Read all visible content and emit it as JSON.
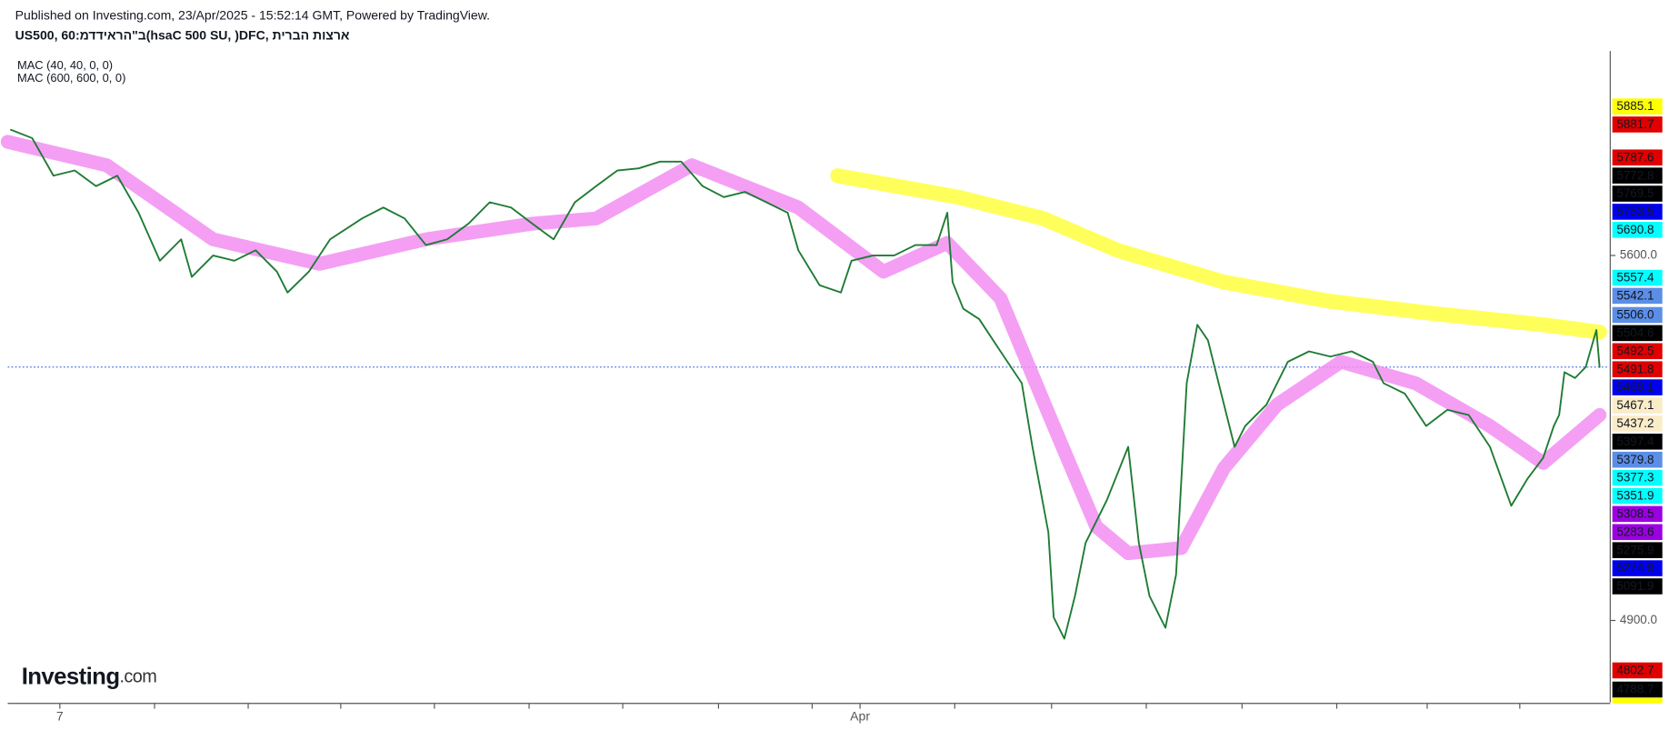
{
  "chart_data": {
    "type": "line",
    "published": "Published on Investing.com, 23/Apr/2025 - 15:52:14 GMT, Powered by TradingView.",
    "title": "US500, 60:מדדיארה\"ב(hsaC 500 SU, )DFC, תירבה תוצרא",
    "indicators": [
      "MAC (40, 40, 0, 0)",
      "MAC (600, 600, 0, 0)"
    ],
    "logo": {
      "brand": "Investing",
      "suffix": ".com"
    },
    "xlim": [
      0,
      1505
    ],
    "xticks": [
      {
        "value": 49,
        "label": "7"
      },
      {
        "value": 801,
        "label": "Apr"
      }
    ],
    "x_minor_ticks": [
      138,
      226,
      313,
      401,
      490,
      578,
      668,
      756,
      890,
      981,
      1070,
      1160,
      1249,
      1334,
      1421
    ],
    "ylim": [
      4743,
      5992
    ],
    "yticks": [
      {
        "value": 5600,
        "label": "5600.0"
      },
      {
        "value": 4900,
        "label": "4900.0"
      }
    ],
    "price_line": 5386,
    "series": [
      {
        "name": "US500",
        "color": "#1e7b34",
        "width": 1.6,
        "x": [
          3,
          23,
          43,
          63,
          83,
          103,
          123,
          143,
          163,
          173,
          193,
          213,
          233,
          253,
          263,
          283,
          303,
          333,
          353,
          373,
          393,
          413,
          433,
          453,
          473,
          493,
          513,
          533,
          553,
          573,
          593,
          613,
          633,
          653,
          673,
          693,
          713,
          733,
          743,
          763,
          783,
          793,
          813,
          833,
          853,
          873,
          883,
          888,
          898,
          913,
          933,
          953,
          963,
          978,
          983,
          993,
          1003,
          1013,
          1033,
          1053,
          1063,
          1073,
          1088,
          1098,
          1108,
          1118,
          1128,
          1138,
          1153,
          1163,
          1183,
          1203,
          1223,
          1243,
          1263,
          1283,
          1293,
          1313,
          1333,
          1353,
          1373,
          1393,
          1413,
          1428,
          1443,
          1453,
          1458,
          1463,
          1473,
          1483,
          1493,
          1496
        ],
        "values": [
          5841,
          5825,
          5753,
          5763,
          5733,
          5753,
          5682,
          5590,
          5631,
          5559,
          5600,
          5590,
          5610,
          5569,
          5529,
          5569,
          5631,
          5671,
          5692,
          5671,
          5620,
          5631,
          5661,
          5702,
          5692,
          5661,
          5631,
          5702,
          5733,
          5763,
          5767,
          5780,
          5780,
          5733,
          5712,
          5722,
          5702,
          5682,
          5610,
          5543,
          5529,
          5590,
          5600,
          5600,
          5620,
          5620,
          5682,
          5549,
          5498,
          5478,
          5416,
          5355,
          5233,
          5069,
          4906,
          4865,
          4947,
          5049,
          5131,
          5233,
          5049,
          4947,
          4886,
          4988,
          5355,
          5467,
          5437,
          5355,
          5233,
          5273,
          5314,
          5396,
          5416,
          5406,
          5416,
          5396,
          5355,
          5335,
          5273,
          5304,
          5294,
          5233,
          5120,
          5171,
          5212,
          5273,
          5294,
          5376,
          5365,
          5386,
          5457,
          5386
        ]
      },
      {
        "name": "MAC (40, 40, 0, 0)",
        "color": "#f28ef2",
        "width": 13,
        "x": [
          0,
          93,
          193,
          293,
          393,
          493,
          553,
          643,
          743,
          823,
          883,
          933,
          983,
          1023,
          1053,
          1103,
          1143,
          1193,
          1253,
          1323,
          1393,
          1443,
          1496
        ],
        "values": [
          5818,
          5773,
          5631,
          5584,
          5631,
          5661,
          5671,
          5773,
          5692,
          5569,
          5624,
          5518,
          5273,
          5080,
          5029,
          5039,
          5192,
          5314,
          5396,
          5355,
          5273,
          5202,
          5294
        ]
      },
      {
        "name": "MAC (600, 600, 0, 0)",
        "color": "#ffff40",
        "width": 14,
        "x": [
          780,
          893,
          973,
          1043,
          1143,
          1243,
          1343,
          1443,
          1496
        ],
        "values": [
          5753,
          5712,
          5671,
          5610,
          5549,
          5512,
          5488,
          5467,
          5453
        ]
      }
    ],
    "price_labels": [
      {
        "text": "5885.1",
        "bg": "#ffff00",
        "fg": "#000000"
      },
      {
        "text": "5881.7",
        "bg": "#e00000",
        "fg": "#ffffff"
      },
      {
        "text": "5787.6",
        "bg": "#e00000",
        "fg": "#ffffff"
      },
      {
        "text": "5772.8",
        "bg": "#000000",
        "fg": "#ffffff"
      },
      {
        "text": "5769.5",
        "bg": "#000000",
        "fg": "#ffffff"
      },
      {
        "text": "5753.5",
        "bg": "#0000ee",
        "fg": "#ffffff"
      },
      {
        "text": "5690.8",
        "bg": "#00ffff",
        "fg": "#000000"
      },
      {
        "text": "5557.4",
        "bg": "#00ffff",
        "fg": "#000000"
      },
      {
        "text": "5542.1",
        "bg": "#5b8ee6",
        "fg": "#ffffff"
      },
      {
        "text": "5506.0",
        "bg": "#5b8ee6",
        "fg": "#ffffff"
      },
      {
        "text": "5504.6",
        "bg": "#000000",
        "fg": "#ffffff"
      },
      {
        "text": "5492.5",
        "bg": "#e00000",
        "fg": "#ffffff"
      },
      {
        "text": "5491.8",
        "bg": "#e00000",
        "fg": "#ffffff"
      },
      {
        "text": "5468.1",
        "bg": "#0000ee",
        "fg": "#ffffff"
      },
      {
        "text": "5467.1",
        "bg": "#fbecc8",
        "fg": "#000000"
      },
      {
        "text": "5437.2",
        "bg": "#fbecc8",
        "fg": "#000000"
      },
      {
        "text": "5397.4",
        "bg": "#000000",
        "fg": "#ffffff"
      },
      {
        "text": "5379.8",
        "bg": "#5b8ee6",
        "fg": "#ffffff"
      },
      {
        "text": "5377.3",
        "bg": "#00ffff",
        "fg": "#000000"
      },
      {
        "text": "5351.9",
        "bg": "#00ffff",
        "fg": "#000000"
      },
      {
        "text": "5308.5",
        "bg": "#9a00e0",
        "fg": "#ffffff"
      },
      {
        "text": "5283.6",
        "bg": "#9a00e0",
        "fg": "#ffffff"
      },
      {
        "text": "5275.9",
        "bg": "#000000",
        "fg": "#ffffff"
      },
      {
        "text": "5274.9",
        "bg": "#0000ee",
        "fg": "#ffffff"
      },
      {
        "text": "5091.9",
        "bg": "#000000",
        "fg": "#ffffff"
      },
      {
        "text": "4802.7",
        "bg": "#e00000",
        "fg": "#ffffff"
      },
      {
        "text": "4788.7",
        "bg": "#000000",
        "fg": "#ffffff"
      }
    ]
  }
}
